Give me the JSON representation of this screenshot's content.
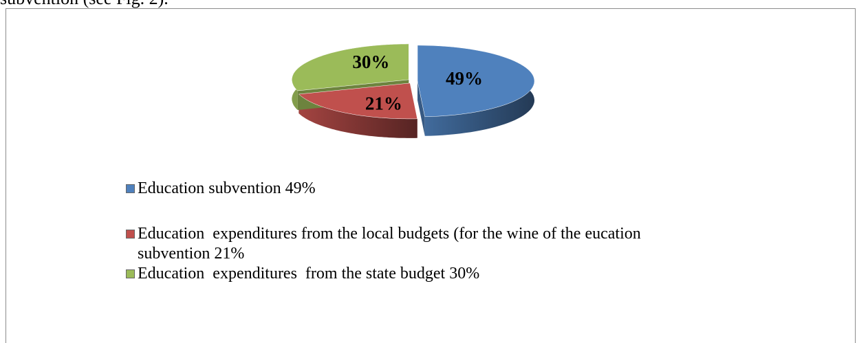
{
  "context_text": "subvention (see Fig. 2).",
  "chart_data": {
    "type": "pie",
    "categories": [
      "Education subvention 49%",
      "Education  expenditures from the local budgets (for the wine of the eucation subvention 21%",
      "Education  expenditures  from the state budget 30%"
    ],
    "values": [
      49,
      21,
      30
    ],
    "value_labels": [
      "49%",
      "21%",
      "30%"
    ],
    "colors": [
      "#4f81bd",
      "#c0504d",
      "#9bbb59"
    ],
    "legend": "bottom"
  }
}
